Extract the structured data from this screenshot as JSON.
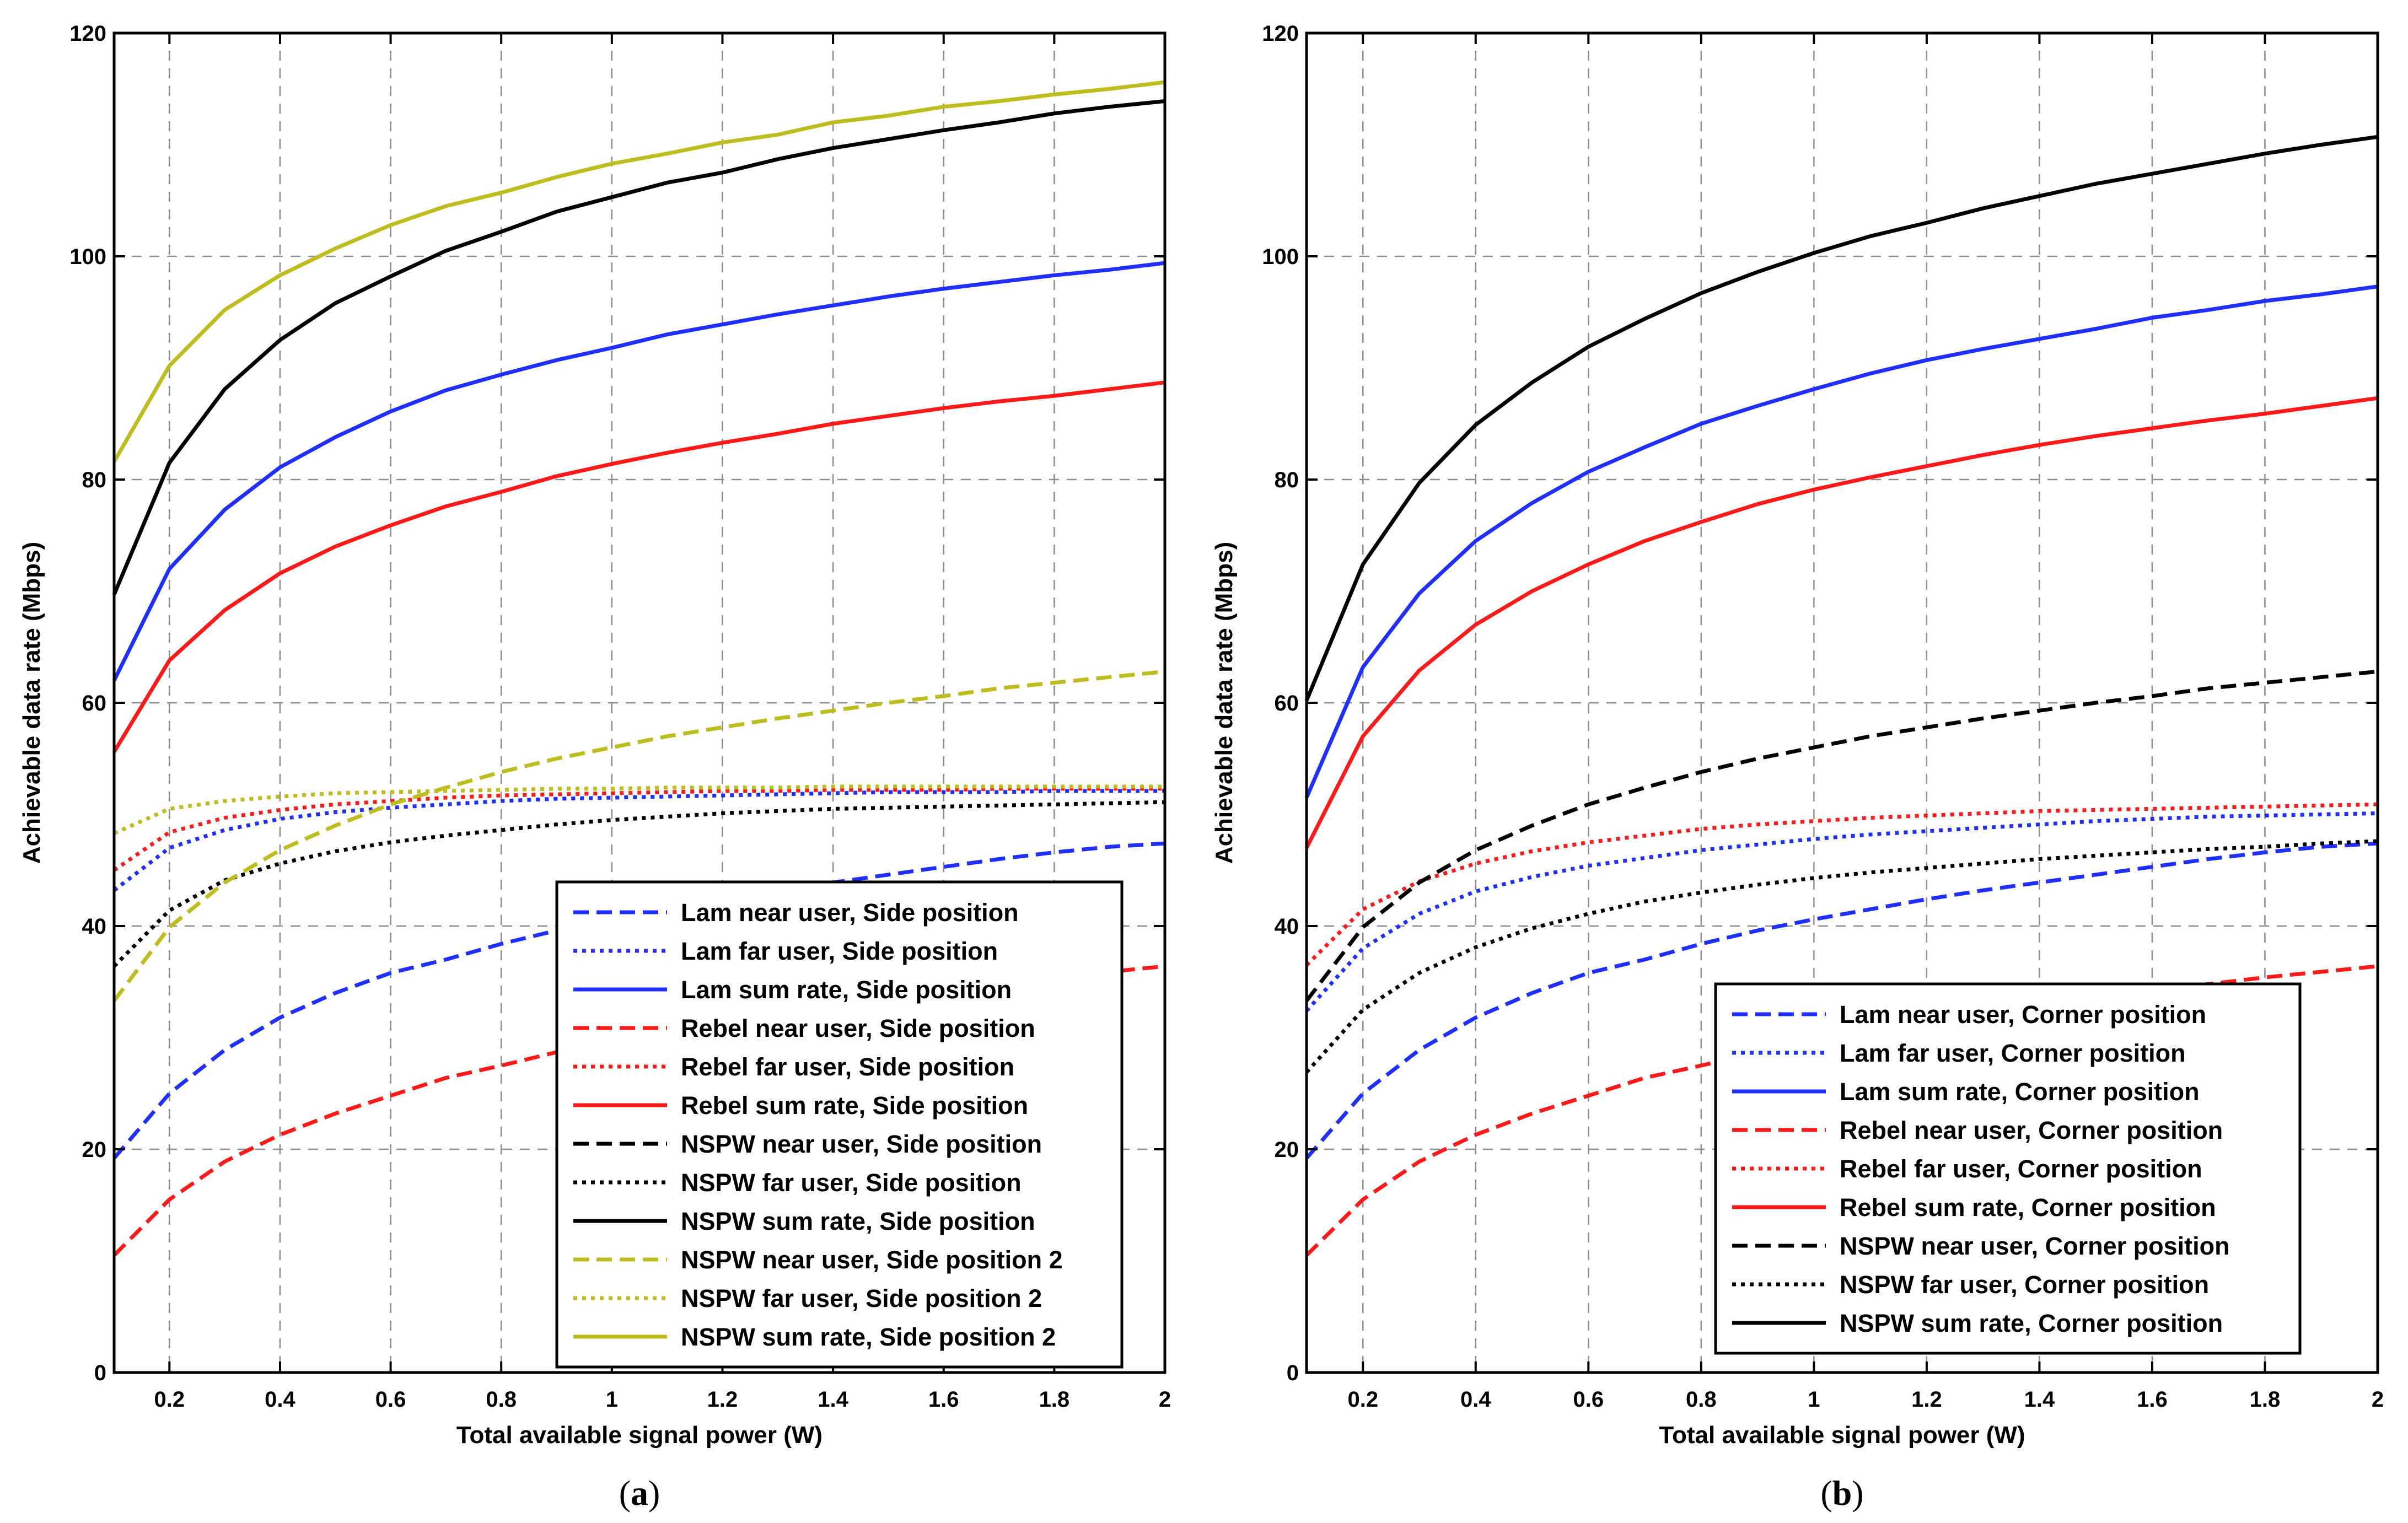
{
  "chart_data": [
    {
      "type": "line",
      "caption": {
        "open": "(",
        "letter": "a",
        "close": ")"
      },
      "xlabel": "Total available signal power (W)",
      "ylabel": "Achievable data rate (Mbps)",
      "xlim": [
        0.1,
        2
      ],
      "ylim": [
        0,
        120
      ],
      "xticks": [
        0.2,
        0.4,
        0.6,
        0.8,
        1,
        1.2,
        1.4,
        1.6,
        1.8,
        2
      ],
      "xtick_labels": [
        "0.2",
        "0.4",
        "0.6",
        "0.8",
        "1",
        "1.2",
        "1.4",
        "1.6",
        "1.8",
        "2"
      ],
      "yticks": [
        0,
        20,
        40,
        60,
        80,
        100,
        120
      ],
      "ytick_labels": [
        "0",
        "20",
        "40",
        "60",
        "80",
        "100",
        "120"
      ],
      "grid": true,
      "legend_position": "bottom-right",
      "x": [
        0.1,
        0.2,
        0.3,
        0.4,
        0.5,
        0.6,
        0.7,
        0.8,
        0.9,
        1.0,
        1.1,
        1.2,
        1.3,
        1.4,
        1.5,
        1.6,
        1.7,
        1.8,
        1.9,
        2.0
      ],
      "series": [
        {
          "name": "Lam near user, Side position",
          "color": "#1f2fff",
          "dash": "dashed",
          "values": [
            19.2,
            25.0,
            28.9,
            31.8,
            34.0,
            35.8,
            37.0,
            38.4,
            39.6,
            40.6,
            41.5,
            42.4,
            43.2,
            43.9,
            44.6,
            45.3,
            46.0,
            46.6,
            47.1,
            47.4
          ]
        },
        {
          "name": "Lam far user, Side position",
          "color": "#1f2fff",
          "dash": "dotted",
          "values": [
            43.2,
            47.0,
            48.6,
            49.6,
            50.2,
            50.6,
            50.9,
            51.2,
            51.4,
            51.5,
            51.6,
            51.7,
            51.8,
            51.9,
            52.0,
            52.0,
            52.0,
            52.1,
            52.1,
            52.1
          ]
        },
        {
          "name": "Lam sum rate, Side position",
          "color": "#1f2fff",
          "dash": "solid",
          "values": [
            62.0,
            72.0,
            77.3,
            81.1,
            83.8,
            86.1,
            88.0,
            89.4,
            90.7,
            91.8,
            93.0,
            93.9,
            94.8,
            95.6,
            96.4,
            97.1,
            97.7,
            98.3,
            98.8,
            99.4
          ]
        },
        {
          "name": "Rebel near user, Side position",
          "color": "#ff1a1a",
          "dash": "dashed",
          "values": [
            10.5,
            15.5,
            18.9,
            21.3,
            23.2,
            24.8,
            26.4,
            27.5,
            28.7,
            29.6,
            30.5,
            31.3,
            32.1,
            32.8,
            33.5,
            34.2,
            34.8,
            35.4,
            35.9,
            36.4
          ]
        },
        {
          "name": "Rebel far user, Side position",
          "color": "#ff1a1a",
          "dash": "dotted",
          "values": [
            45.0,
            48.4,
            49.7,
            50.4,
            50.9,
            51.2,
            51.5,
            51.7,
            51.8,
            51.9,
            52.0,
            52.1,
            52.1,
            52.2,
            52.2,
            52.2,
            52.3,
            52.3,
            52.3,
            52.3
          ]
        },
        {
          "name": "Rebel sum rate, Side position",
          "color": "#ff1a1a",
          "dash": "solid",
          "values": [
            55.6,
            63.8,
            68.3,
            71.6,
            74.0,
            75.9,
            77.6,
            78.9,
            80.3,
            81.4,
            82.4,
            83.3,
            84.1,
            85.0,
            85.7,
            86.4,
            87.0,
            87.5,
            88.1,
            88.7
          ]
        },
        {
          "name": "NSPW near user, Side position",
          "color": "#000000",
          "dash": "dashed",
          "values": [
            null,
            null,
            null,
            null,
            null,
            null,
            null,
            null,
            null,
            null,
            null,
            null,
            null,
            null,
            null,
            null,
            null,
            null,
            null,
            null
          ]
        },
        {
          "name": "NSPW far user, Side position",
          "color": "#000000",
          "dash": "dotted",
          "values": [
            36.4,
            41.4,
            44.1,
            45.6,
            46.7,
            47.5,
            48.1,
            48.6,
            49.1,
            49.5,
            49.8,
            50.1,
            50.3,
            50.5,
            50.6,
            50.7,
            50.8,
            50.9,
            51.0,
            51.1
          ]
        },
        {
          "name": "NSPW sum rate, Side position",
          "color": "#000000",
          "dash": "solid",
          "values": [
            69.7,
            81.5,
            88.1,
            92.5,
            95.8,
            98.2,
            100.5,
            102.2,
            104.0,
            105.3,
            106.6,
            107.5,
            108.7,
            109.7,
            110.5,
            111.3,
            112.0,
            112.8,
            113.4,
            113.9
          ]
        },
        {
          "name": "NSPW near user, Side position 2",
          "color": "#bdbd1e",
          "dash": "dashed",
          "values": [
            33.3,
            39.9,
            43.9,
            46.8,
            49.0,
            50.9,
            52.4,
            53.8,
            55.0,
            56.0,
            57.0,
            57.8,
            58.6,
            59.3,
            60.0,
            60.6,
            61.3,
            61.8,
            62.3,
            62.8
          ]
        },
        {
          "name": "NSPW far user, Side position 2",
          "color": "#bdbd1e",
          "dash": "dotted",
          "values": [
            48.3,
            50.5,
            51.2,
            51.6,
            51.9,
            52.0,
            52.1,
            52.2,
            52.3,
            52.3,
            52.4,
            52.4,
            52.4,
            52.5,
            52.5,
            52.5,
            52.5,
            52.5,
            52.5,
            52.5
          ]
        },
        {
          "name": "NSPW sum rate, Side position 2",
          "color": "#bdbd1e",
          "dash": "solid",
          "values": [
            81.6,
            90.2,
            95.2,
            98.3,
            100.7,
            102.8,
            104.5,
            105.7,
            107.1,
            108.3,
            109.2,
            110.2,
            110.9,
            112.0,
            112.6,
            113.4,
            113.9,
            114.5,
            115.0,
            115.6
          ]
        }
      ]
    },
    {
      "type": "line",
      "caption": {
        "open": "(",
        "letter": "b",
        "close": ")"
      },
      "xlabel": "Total available signal power (W)",
      "ylabel": "Achievable data rate (Mbps)",
      "xlim": [
        0.1,
        2
      ],
      "ylim": [
        0,
        120
      ],
      "xticks": [
        0.2,
        0.4,
        0.6,
        0.8,
        1,
        1.2,
        1.4,
        1.6,
        1.8,
        2
      ],
      "xtick_labels": [
        "0.2",
        "0.4",
        "0.6",
        "0.8",
        "1",
        "1.2",
        "1.4",
        "1.6",
        "1.8",
        "2"
      ],
      "yticks": [
        0,
        20,
        40,
        60,
        80,
        100,
        120
      ],
      "ytick_labels": [
        "0",
        "20",
        "40",
        "60",
        "80",
        "100",
        "120"
      ],
      "grid": true,
      "legend_position": "bottom-right",
      "x": [
        0.1,
        0.2,
        0.3,
        0.4,
        0.5,
        0.6,
        0.7,
        0.8,
        0.9,
        1.0,
        1.1,
        1.2,
        1.3,
        1.4,
        1.5,
        1.6,
        1.7,
        1.8,
        1.9,
        2.0
      ],
      "series": [
        {
          "name": "Lam near user, Corner position",
          "color": "#1f2fff",
          "dash": "dashed",
          "values": [
            19.2,
            25.0,
            28.9,
            31.8,
            34.0,
            35.8,
            37.0,
            38.4,
            39.6,
            40.6,
            41.5,
            42.4,
            43.2,
            43.9,
            44.6,
            45.3,
            46.0,
            46.6,
            47.1,
            47.4
          ]
        },
        {
          "name": "Lam far user, Corner position",
          "color": "#1f2fff",
          "dash": "dotted",
          "values": [
            32.4,
            38.0,
            41.1,
            43.1,
            44.4,
            45.4,
            46.1,
            46.8,
            47.3,
            47.8,
            48.2,
            48.5,
            48.8,
            49.1,
            49.4,
            49.6,
            49.8,
            49.9,
            50.0,
            50.1
          ]
        },
        {
          "name": "Lam sum rate, Corner position",
          "color": "#1f2fff",
          "dash": "solid",
          "values": [
            51.5,
            63.2,
            69.8,
            74.5,
            77.9,
            80.7,
            82.9,
            85.0,
            86.6,
            88.1,
            89.5,
            90.7,
            91.7,
            92.6,
            93.5,
            94.5,
            95.2,
            96.0,
            96.6,
            97.3
          ]
        },
        {
          "name": "Rebel near user, Corner position",
          "color": "#ff1a1a",
          "dash": "dashed",
          "values": [
            10.5,
            15.5,
            18.9,
            21.3,
            23.2,
            24.8,
            26.4,
            27.5,
            28.7,
            29.6,
            30.5,
            31.3,
            32.1,
            32.8,
            33.5,
            34.2,
            34.8,
            35.4,
            35.9,
            36.4
          ]
        },
        {
          "name": "Rebel far user, Corner position",
          "color": "#ff1a1a",
          "dash": "dotted",
          "values": [
            36.5,
            41.5,
            44.0,
            45.6,
            46.7,
            47.5,
            48.1,
            48.7,
            49.1,
            49.4,
            49.7,
            49.9,
            50.1,
            50.3,
            50.4,
            50.5,
            50.6,
            50.7,
            50.8,
            50.9
          ]
        },
        {
          "name": "Rebel sum rate, Corner position",
          "color": "#ff1a1a",
          "dash": "solid",
          "values": [
            47.0,
            57.0,
            62.9,
            67.0,
            70.0,
            72.4,
            74.5,
            76.2,
            77.8,
            79.1,
            80.2,
            81.2,
            82.2,
            83.1,
            83.9,
            84.6,
            85.3,
            85.9,
            86.6,
            87.3
          ]
        },
        {
          "name": "NSPW near user, Corner position",
          "color": "#000000",
          "dash": "dashed",
          "values": [
            33.3,
            39.9,
            43.9,
            46.8,
            49.0,
            50.9,
            52.4,
            53.8,
            55.0,
            56.0,
            57.0,
            57.8,
            58.6,
            59.3,
            60.0,
            60.6,
            61.3,
            61.8,
            62.3,
            62.8
          ]
        },
        {
          "name": "NSPW far user, Corner position",
          "color": "#000000",
          "dash": "dotted",
          "values": [
            26.9,
            32.5,
            35.8,
            38.1,
            39.8,
            41.1,
            42.2,
            43.0,
            43.7,
            44.3,
            44.8,
            45.2,
            45.6,
            46.0,
            46.3,
            46.6,
            46.9,
            47.1,
            47.4,
            47.6
          ]
        },
        {
          "name": "NSPW sum rate, Corner position",
          "color": "#000000",
          "dash": "solid",
          "values": [
            60.2,
            72.4,
            79.7,
            84.9,
            88.7,
            91.9,
            94.4,
            96.7,
            98.6,
            100.3,
            101.8,
            103.0,
            104.3,
            105.4,
            106.5,
            107.4,
            108.3,
            109.2,
            110.0,
            110.7
          ]
        }
      ]
    }
  ]
}
